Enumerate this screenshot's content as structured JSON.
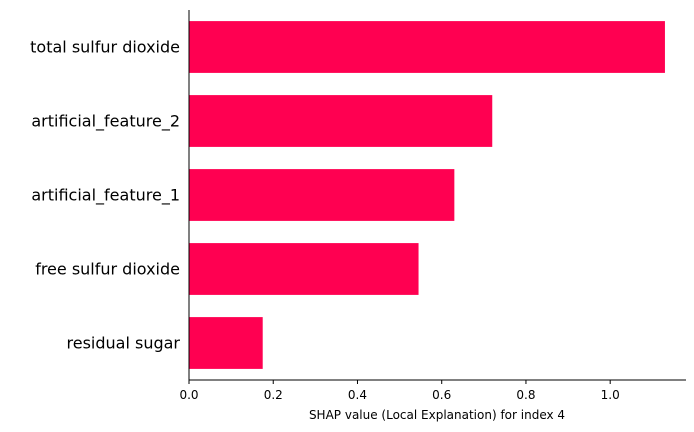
{
  "chart_data": {
    "type": "bar",
    "orientation": "horizontal",
    "title": "",
    "xlabel": "SHAP value (Local Explanation) for index 4",
    "ylabel": "",
    "categories": [
      "total sulfur dioxide",
      "artificial_feature_2",
      "artificial_feature_1",
      "free sulfur dioxide",
      "residual sugar"
    ],
    "values": [
      1.13,
      0.72,
      0.63,
      0.545,
      0.175
    ],
    "xlim": [
      0.0,
      1.18
    ],
    "xticks": [
      0.0,
      0.2,
      0.4,
      0.6,
      0.8,
      1.0
    ],
    "xtick_labels": [
      "0.0",
      "0.2",
      "0.4",
      "0.6",
      "0.8",
      "1.0"
    ],
    "bar_color": "#ff0051",
    "grid": false,
    "legend": "none"
  }
}
